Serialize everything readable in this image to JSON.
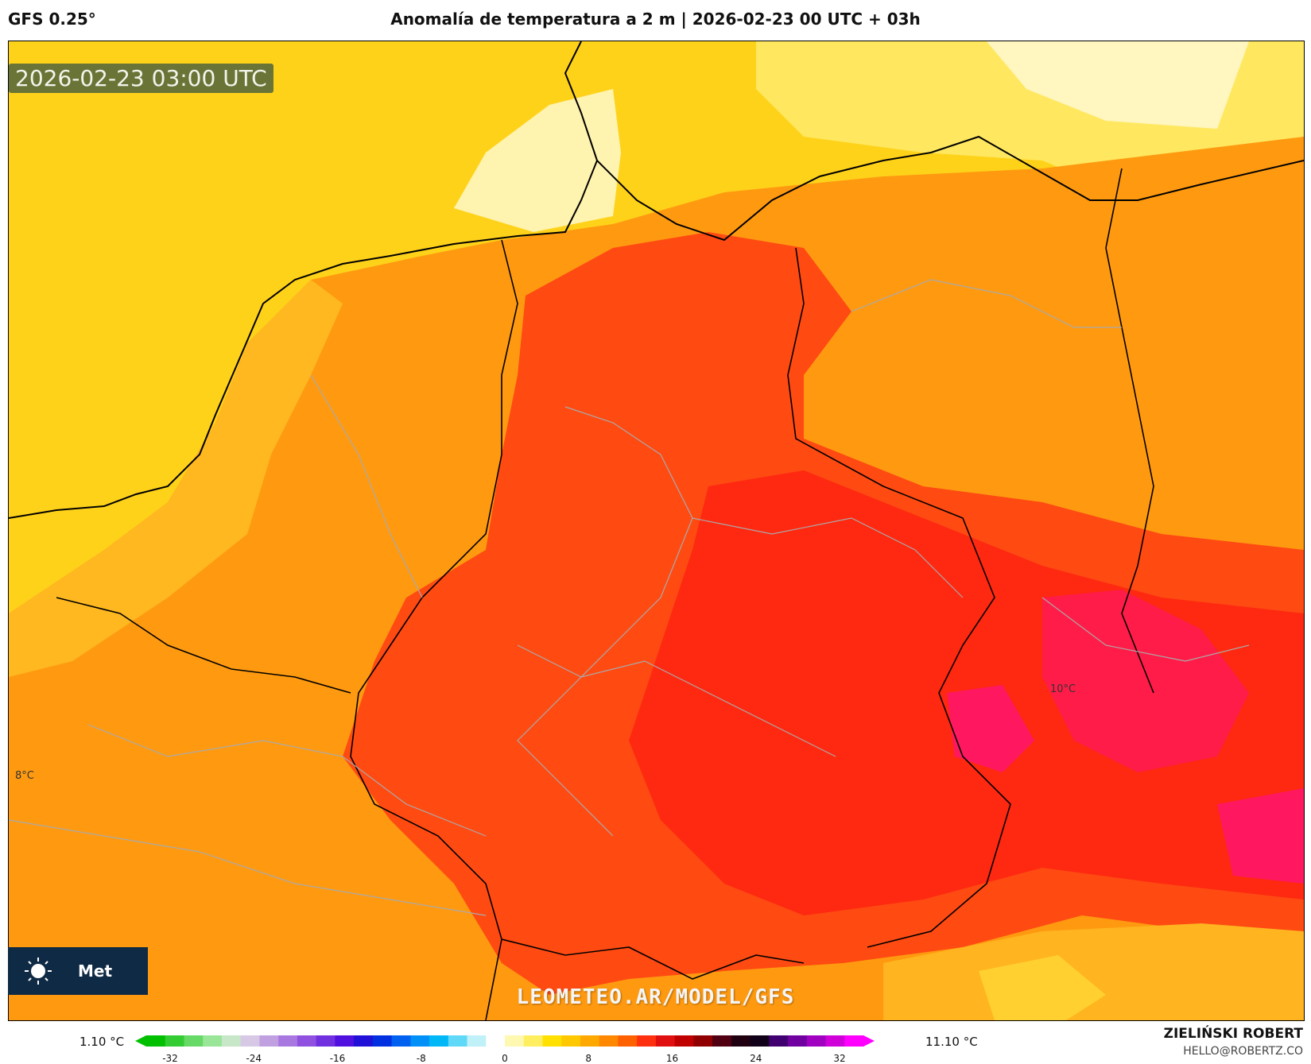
{
  "header": {
    "model": "GFS 0.25°",
    "title": "Anomalía de temperatura a 2 m | 2026-02-23 00 UTC + 03h"
  },
  "map": {
    "valid_time": "2026-02-23 03:00 UTC",
    "watermark": "LEOMETEO.AR/MODEL/GFS",
    "logo_text": "Met",
    "point_labels": [
      "10°C",
      "8°C"
    ]
  },
  "colorbar": {
    "min_label": "1.10 °C",
    "max_label": "11.10 °C",
    "ticks": [
      "-32",
      "-24",
      "-16",
      "-8",
      "0",
      "8",
      "16",
      "24",
      "32"
    ],
    "colors": [
      "#00c000",
      "#33cc33",
      "#66d966",
      "#99e699",
      "#c8e6c8",
      "#d7c8e6",
      "#c0a0e0",
      "#a878e0",
      "#9050e0",
      "#7030e0",
      "#5010e0",
      "#2010d8",
      "#0030e0",
      "#0060f0",
      "#0090f8",
      "#00b8f8",
      "#60d8f8",
      "#c0f0f8",
      "#ffffff",
      "#fff8b0",
      "#ffef60",
      "#ffe000",
      "#ffc800",
      "#ffa800",
      "#ff8800",
      "#ff6000",
      "#ff3010",
      "#e01010",
      "#c00000",
      "#900000",
      "#500010",
      "#200010",
      "#100018",
      "#400070",
      "#7000a0",
      "#a000c0",
      "#d000d8",
      "#ff00ff"
    ]
  },
  "credits": {
    "author": "ZIELIŃSKI ROBERT",
    "email": "HELLO@ROBERTZ.CO"
  }
}
